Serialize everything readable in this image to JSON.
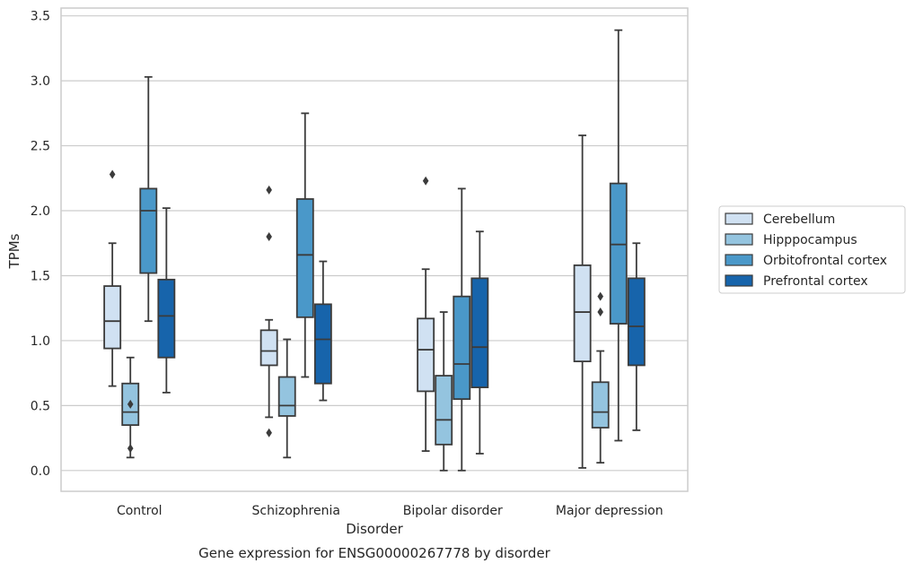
{
  "chart_data": {
    "type": "box",
    "xlabel": "Disorder",
    "ylabel": "TPMs",
    "caption": "Gene expression for ENSG00000267778 by disorder",
    "ylim": [
      -0.16,
      3.56
    ],
    "yticks": [
      "0.0",
      "0.5",
      "1.0",
      "1.5",
      "2.0",
      "2.5",
      "3.0",
      "3.5"
    ],
    "ytick_values": [
      0.0,
      0.5,
      1.0,
      1.5,
      2.0,
      2.5,
      3.0,
      3.5
    ],
    "grid": "horizontal",
    "legend_position": "right",
    "categories": [
      "Control",
      "Schizophrenia",
      "Bipolar disorder",
      "Major depression"
    ],
    "series": [
      {
        "name": "Cerebellum",
        "color": "#d0e1f2",
        "boxes": [
          {
            "whisker_low": 0.65,
            "q1": 0.94,
            "median": 1.15,
            "q3": 1.42,
            "whisker_high": 1.75,
            "outliers": [
              2.28
            ]
          },
          {
            "whisker_low": 0.41,
            "q1": 0.81,
            "median": 0.92,
            "q3": 1.08,
            "whisker_high": 1.16,
            "outliers": [
              2.16,
              1.8,
              0.29
            ]
          },
          {
            "whisker_low": 0.15,
            "q1": 0.61,
            "median": 0.93,
            "q3": 1.17,
            "whisker_high": 1.55,
            "outliers": [
              2.23
            ]
          },
          {
            "whisker_low": 0.02,
            "q1": 0.84,
            "median": 1.22,
            "q3": 1.58,
            "whisker_high": 2.58,
            "outliers": []
          }
        ]
      },
      {
        "name": "Hipppocampus",
        "color": "#94c4df",
        "boxes": [
          {
            "whisker_low": 0.1,
            "q1": 0.35,
            "median": 0.45,
            "q3": 0.67,
            "whisker_high": 0.87,
            "outliers": [
              0.51,
              0.17
            ]
          },
          {
            "whisker_low": 0.1,
            "q1": 0.42,
            "median": 0.5,
            "q3": 0.72,
            "whisker_high": 1.01,
            "outliers": []
          },
          {
            "whisker_low": 0.0,
            "q1": 0.2,
            "median": 0.39,
            "q3": 0.73,
            "whisker_high": 1.22,
            "outliers": []
          },
          {
            "whisker_low": 0.06,
            "q1": 0.33,
            "median": 0.45,
            "q3": 0.68,
            "whisker_high": 0.92,
            "outliers": [
              1.34,
              1.22
            ]
          }
        ]
      },
      {
        "name": "Orbitofrontal cortex",
        "color": "#4a98c9",
        "boxes": [
          {
            "whisker_low": 1.15,
            "q1": 1.52,
            "median": 2.0,
            "q3": 2.17,
            "whisker_high": 3.03,
            "outliers": []
          },
          {
            "whisker_low": 0.72,
            "q1": 1.18,
            "median": 1.66,
            "q3": 2.09,
            "whisker_high": 2.75,
            "outliers": []
          },
          {
            "whisker_low": 0.0,
            "q1": 0.55,
            "median": 0.82,
            "q3": 1.34,
            "whisker_high": 2.17,
            "outliers": []
          },
          {
            "whisker_low": 0.23,
            "q1": 1.13,
            "median": 1.74,
            "q3": 2.21,
            "whisker_high": 3.39,
            "outliers": []
          }
        ]
      },
      {
        "name": "Prefrontal cortex",
        "color": "#1764ab",
        "boxes": [
          {
            "whisker_low": 0.6,
            "q1": 0.87,
            "median": 1.19,
            "q3": 1.47,
            "whisker_high": 2.02,
            "outliers": []
          },
          {
            "whisker_low": 0.54,
            "q1": 0.67,
            "median": 1.01,
            "q3": 1.28,
            "whisker_high": 1.61,
            "outliers": []
          },
          {
            "whisker_low": 0.13,
            "q1": 0.64,
            "median": 0.95,
            "q3": 1.48,
            "whisker_high": 1.84,
            "outliers": []
          },
          {
            "whisker_low": 0.31,
            "q1": 0.81,
            "median": 1.11,
            "q3": 1.48,
            "whisker_high": 1.75,
            "outliers": []
          }
        ]
      }
    ]
  }
}
